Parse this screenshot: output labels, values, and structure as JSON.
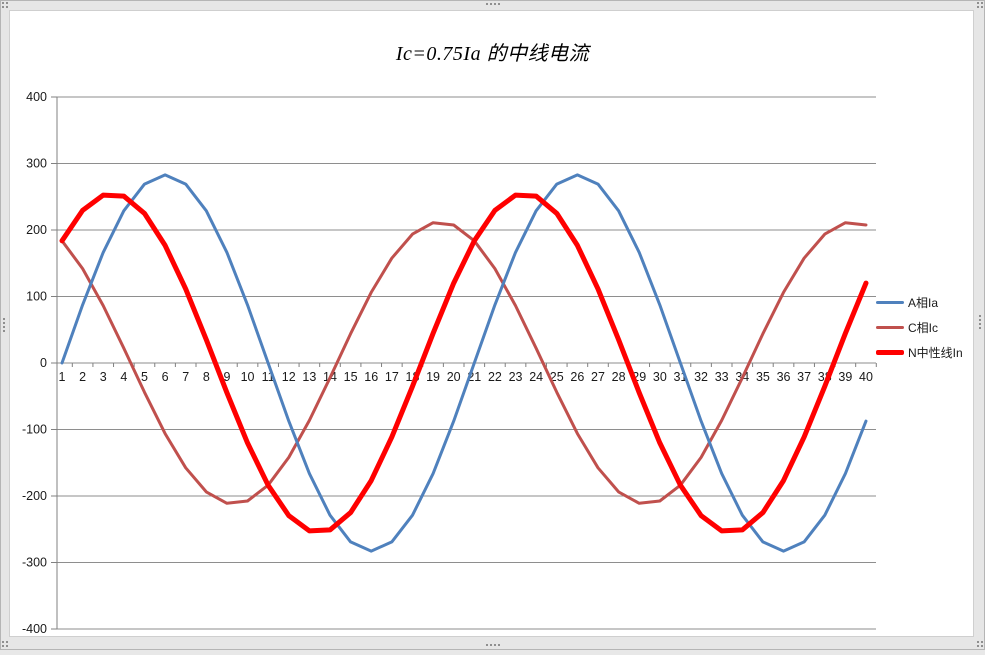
{
  "title": "Ic=0.75Ia 的中线电流",
  "colors": {
    "series_a": "#4F81BD",
    "series_c": "#C0504D",
    "series_n": "#FF0000",
    "gridline": "#8E8E8E",
    "axis": "#808080",
    "text": "#1a1a1a"
  },
  "legend": {
    "position": "right",
    "items": [
      {
        "label": "A相Ia",
        "color": "#4F81BD"
      },
      {
        "label": "C相Ic",
        "color": "#C0504D"
      },
      {
        "label": "N中性线In",
        "color": "#FF0000"
      }
    ]
  },
  "chart_data": {
    "type": "line",
    "title": "Ic=0.75Ia 的中线电流",
    "grid": true,
    "legend_position": "right",
    "ylim": [
      -400,
      400
    ],
    "y_ticks": [
      400,
      300,
      200,
      100,
      0,
      -100,
      -200,
      -300,
      -400
    ],
    "x": [
      1,
      2,
      3,
      4,
      5,
      6,
      7,
      8,
      9,
      10,
      11,
      12,
      13,
      14,
      15,
      16,
      17,
      18,
      19,
      20,
      21,
      22,
      23,
      24,
      25,
      26,
      27,
      28,
      29,
      30,
      31,
      32,
      33,
      34,
      35,
      36,
      37,
      38,
      39,
      40
    ],
    "series": [
      {
        "name": "A相Ia",
        "color": "#4F81BD",
        "width": 3,
        "values": [
          0,
          87.4,
          166.3,
          228.8,
          269.0,
          282.8,
          269.0,
          228.8,
          166.3,
          87.4,
          0,
          -87.4,
          -166.3,
          -228.8,
          -269.0,
          -282.8,
          -269.0,
          -228.8,
          -166.3,
          -87.4,
          0,
          87.4,
          166.3,
          228.8,
          269.0,
          282.8,
          269.0,
          228.8,
          166.3,
          87.4,
          0,
          -87.4,
          -166.3,
          -228.8,
          -269.0,
          -282.8,
          -269.0,
          -228.8,
          -166.3,
          -87.4
        ]
      },
      {
        "name": "C相Ic",
        "color": "#C0504D",
        "width": 3,
        "values": [
          183.7,
          142.0,
          86.3,
          22.2,
          -44.1,
          -106.1,
          -157.6,
          -193.8,
          -211.0,
          -207.5,
          -183.7,
          -142.0,
          -86.3,
          -22.2,
          44.1,
          106.1,
          157.6,
          193.8,
          211.0,
          207.5,
          183.7,
          142.0,
          86.3,
          22.2,
          -44.1,
          -106.1,
          -157.6,
          -193.8,
          -211.0,
          -207.5,
          -183.7,
          -142.0,
          -86.3,
          -22.2,
          44.1,
          106.1,
          157.6,
          193.8,
          211.0,
          207.5
        ]
      },
      {
        "name": "N中性线In",
        "color": "#FF0000",
        "width": 5,
        "values": [
          183.7,
          229.4,
          252.5,
          251.0,
          224.9,
          176.8,
          111.4,
          35.0,
          -44.7,
          -120.1,
          -183.7,
          -229.4,
          -252.5,
          -251.0,
          -224.9,
          -176.8,
          -111.4,
          -35.0,
          44.7,
          120.1,
          183.7,
          229.4,
          252.5,
          251.0,
          224.9,
          176.8,
          111.4,
          35.0,
          -44.7,
          -120.1,
          -183.7,
          -229.4,
          -252.5,
          -251.0,
          -224.9,
          -176.8,
          -111.4,
          -35.0,
          44.7,
          120.1
        ]
      }
    ]
  }
}
